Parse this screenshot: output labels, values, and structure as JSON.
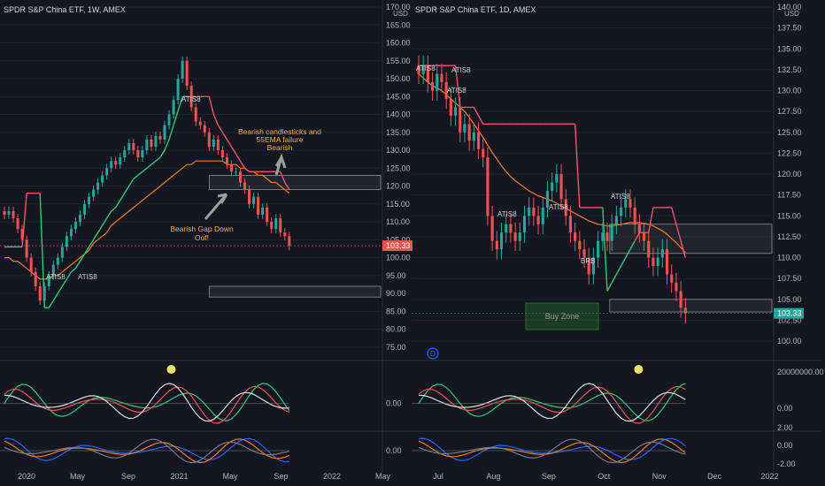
{
  "colors": {
    "background": "#131722",
    "grid": "#1e222d",
    "text": "#b2b5be",
    "bull_candle": "#26a69a",
    "bear_candle": "#ef5350",
    "supertrend_up": "#2ecc71",
    "supertrend_down": "#f7525f",
    "ema": "#f57c1f",
    "annotation": "#f5b041",
    "price_badge_left": "#ef5350",
    "price_badge_right": "#26a69a",
    "buy_zone": "#1b5e20",
    "indicator_dot": "#f5e266"
  },
  "chart_data": [
    {
      "panel": "left",
      "type": "candlestick",
      "title": "SPDR S&P China ETF, 1W, AMEX",
      "currency": "USD",
      "ylim": [
        72,
        170
      ],
      "y_ticks": [
        "170.00",
        "165.00",
        "160.00",
        "155.00",
        "150.00",
        "145.00",
        "140.00",
        "135.00",
        "130.00",
        "125.00",
        "120.00",
        "115.00",
        "110.00",
        "105.00",
        "100.00",
        "95.00",
        "90.00",
        "85.00",
        "80.00",
        "75.00"
      ],
      "x_ticks": [
        "2020",
        "May",
        "Sep",
        "2021",
        "May",
        "Sep",
        "2022",
        "May"
      ],
      "last_price": "103.33",
      "close_series": [
        112,
        113,
        111,
        108,
        105,
        100,
        96,
        92,
        88,
        92,
        95,
        98,
        100,
        103,
        106,
        108,
        110,
        112,
        115,
        117,
        119,
        121,
        123,
        125,
        127,
        126,
        128,
        130,
        132,
        130,
        128,
        130,
        133,
        131,
        134,
        133,
        137,
        140,
        144,
        150,
        155,
        148,
        142,
        138,
        137,
        135,
        131,
        133,
        130,
        128,
        126,
        124,
        124,
        121,
        119,
        115,
        117,
        112,
        114,
        110,
        108,
        111,
        107,
        106,
        103.33
      ],
      "supertrend": [
        103,
        103,
        103,
        103,
        103,
        118,
        118,
        118,
        118,
        86,
        86,
        88,
        90,
        92,
        94,
        96,
        97,
        99,
        101,
        103,
        105,
        107,
        109,
        111,
        113,
        114,
        116,
        118,
        120,
        122,
        123,
        124,
        125,
        126,
        127,
        128,
        130,
        133,
        137,
        141,
        145,
        145,
        145,
        145,
        145,
        145,
        145,
        140,
        137,
        135,
        133,
        131,
        129,
        127,
        125,
        124,
        124,
        124,
        124,
        124,
        124,
        124,
        124,
        121,
        119
      ],
      "ema": [
        100,
        100,
        99,
        99,
        98,
        97,
        96,
        95,
        94,
        94,
        94,
        95,
        95,
        96,
        97,
        98,
        99,
        100,
        101,
        102,
        104,
        105,
        106,
        107,
        109,
        110,
        111,
        112,
        113,
        114,
        115,
        116,
        117,
        118,
        119,
        120,
        121,
        122,
        123,
        124,
        125,
        126,
        126,
        127,
        127,
        127,
        127,
        127,
        127,
        127,
        126,
        126,
        126,
        125,
        125,
        124,
        124,
        123,
        123,
        122,
        121,
        121,
        120,
        119,
        118
      ],
      "annotations": [
        "Bearish candlesticks and",
        "55EMA failure",
        "Bearish",
        "Bearish Gap Down",
        "Oof!",
        "ATIS8",
        "ATIS8",
        "ATIS8"
      ],
      "indicator_labels": [
        "0.00",
        "0.00"
      ],
      "zones": [
        [
          119,
          123
        ],
        [
          89,
          92
        ]
      ]
    },
    {
      "panel": "right",
      "type": "candlestick",
      "title": "SPDR S&P China ETF, 1D, AMEX",
      "currency": "USD",
      "ylim": [
        98,
        140
      ],
      "y_ticks": [
        "140.00",
        "137.50",
        "135.00",
        "132.50",
        "130.00",
        "127.50",
        "125.00",
        "122.50",
        "120.00",
        "117.50",
        "115.00",
        "112.50",
        "110.00",
        "107.50",
        "105.00",
        "102.50",
        "100.00"
      ],
      "x_ticks": [
        "Jul",
        "Aug",
        "Sep",
        "Oct",
        "Nov",
        "Dec",
        "2022"
      ],
      "last_price": "103.33",
      "close_series": [
        132,
        133,
        131,
        130,
        132,
        131,
        129,
        127,
        128,
        125,
        126,
        124,
        125,
        123,
        122,
        115,
        112,
        111,
        113,
        114,
        113,
        112,
        113,
        115,
        116,
        115,
        114,
        116,
        118,
        119,
        120,
        117,
        115,
        113,
        112,
        111,
        110,
        108,
        110,
        112,
        113,
        112,
        114,
        115,
        116,
        117,
        116,
        114,
        113,
        112,
        110,
        109,
        110,
        111,
        108,
        107,
        106,
        104,
        103.33
      ],
      "supertrend": [
        133,
        133,
        133,
        133,
        133,
        133,
        133,
        133,
        133,
        128,
        128,
        128,
        128,
        127,
        126,
        126,
        126,
        126,
        126,
        126,
        126,
        126,
        126,
        126,
        126,
        126,
        126,
        126,
        126,
        126,
        126,
        126,
        126,
        126,
        126,
        116,
        116,
        116,
        116,
        116,
        116,
        106,
        107,
        108,
        109,
        110,
        111,
        112,
        113,
        113,
        113,
        116,
        116,
        116,
        116,
        116,
        114,
        112,
        110
      ],
      "ema": [
        132,
        131.5,
        131,
        130.6,
        130.3,
        130,
        129.5,
        129,
        128.5,
        128,
        127.5,
        126.8,
        126,
        125.2,
        124.4,
        123.5,
        122.6,
        121.8,
        121,
        120.3,
        119.7,
        119.2,
        118.8,
        118.4,
        118,
        117.7,
        117.4,
        117.2,
        117,
        116.8,
        116.5,
        116.2,
        115.9,
        115.6,
        115.3,
        115,
        114.7,
        114.4,
        114.2,
        114,
        113.9,
        113.8,
        113.8,
        113.9,
        114,
        114.1,
        114.2,
        114.2,
        114.2,
        114.1,
        114,
        113.8,
        113.5,
        113.2,
        112.8,
        112.3,
        111.8,
        111.2,
        110.6
      ],
      "annotations": [
        "ATIS8",
        "ATIS8",
        "ATIS8",
        "ATIS8",
        "ATIS8",
        "ATIS8",
        "BRB",
        "Buy Zone",
        "D"
      ],
      "indicator_labels": [
        "20000000.00",
        "0.00",
        "2.00",
        "0.00",
        "-2.00"
      ],
      "zones": [
        [
          110.5,
          114
        ],
        [
          103.5,
          105
        ]
      ]
    }
  ]
}
